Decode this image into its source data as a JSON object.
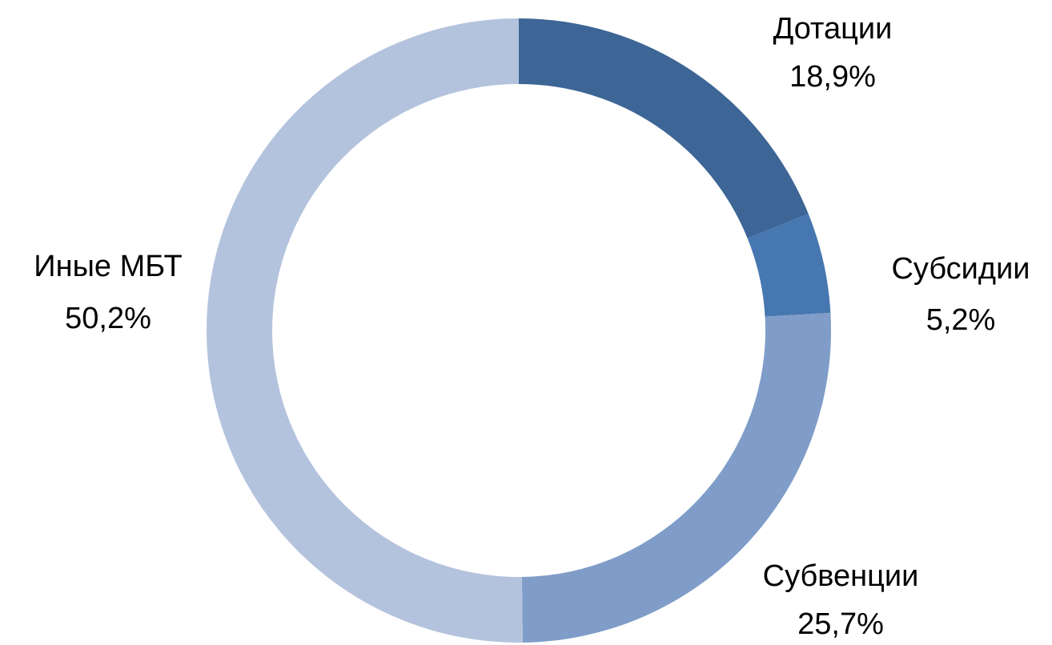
{
  "chart_data": {
    "type": "donut",
    "categories": [
      "Дотации",
      "Субсидии",
      "Субвенции",
      "Иные МБТ"
    ],
    "values": [
      18.9,
      5.2,
      25.7,
      50.2
    ],
    "value_labels": [
      "18,9%",
      "5,2%",
      "25,7%",
      "50,2%"
    ],
    "colors": [
      "#3d6595",
      "#4677b0",
      "#7f9dc8",
      "#b4c3dd"
    ]
  }
}
